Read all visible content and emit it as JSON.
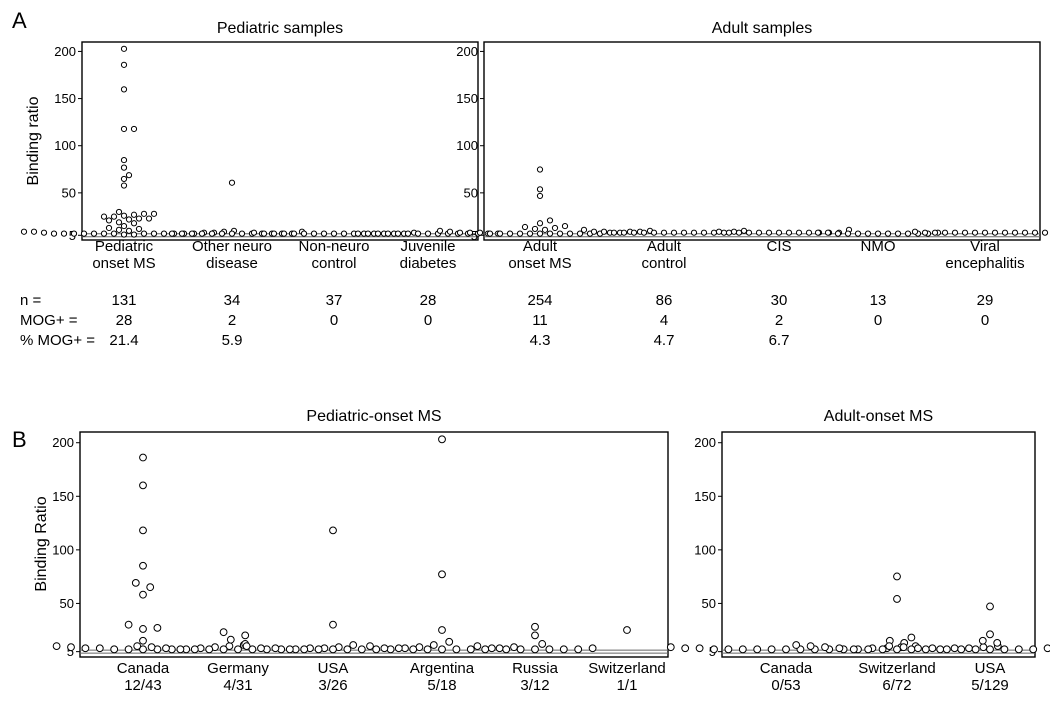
{
  "panel_letters": [
    "A",
    "B"
  ],
  "stats_labels": [
    "n =",
    "MOG+ =",
    "% MOG+ ="
  ],
  "chart_data": [
    {
      "id": "A1",
      "type": "scatter",
      "title": "Pediatric samples",
      "ylabel": "Binding ratio",
      "ylim": [
        0,
        210
      ],
      "yticks": [
        5,
        50,
        100,
        150,
        200
      ],
      "cutoff": 5,
      "categories": [
        [
          "Pediatric",
          "onset MS"
        ],
        [
          "Other neuro",
          "disease"
        ],
        [
          "Non-neuro",
          "control"
        ],
        [
          "Juvenile",
          "diabetes"
        ]
      ],
      "stats": {
        "n": [
          "131",
          "34",
          "37",
          "28"
        ],
        "mog_pos": [
          "28",
          "2",
          "0",
          "0"
        ],
        "pct": [
          "21.4",
          "5.9",
          "",
          ""
        ]
      },
      "series": [
        {
          "values": [
            200,
            183,
            157,
            115,
            115,
            82,
            74,
            66,
            62,
            55,
            27,
            25,
            25,
            24,
            23,
            22,
            22,
            20,
            20,
            19,
            18,
            16,
            15,
            12,
            10,
            9,
            8,
            7,
            7,
            6,
            6,
            6,
            5,
            5,
            5,
            4,
            4,
            4,
            4,
            4,
            4,
            4,
            4,
            4,
            4,
            4,
            4,
            4,
            3,
            3
          ]
        },
        {
          "values": [
            58,
            6,
            4,
            4,
            4,
            4,
            4,
            4,
            4,
            4,
            4,
            4,
            4,
            4,
            4
          ]
        },
        {
          "values": [
            5,
            5,
            4,
            4,
            4,
            4,
            4,
            4,
            4,
            4,
            4,
            4,
            4,
            4,
            4,
            4,
            4
          ]
        },
        {
          "values": [
            4,
            4,
            4,
            4,
            4,
            4,
            4,
            4,
            4,
            4,
            4,
            4,
            4,
            4,
            4
          ]
        }
      ]
    },
    {
      "id": "A2",
      "type": "scatter",
      "title": "Adult samples",
      "ylabel": "",
      "ylim": [
        0,
        210
      ],
      "yticks": [
        5,
        50,
        100,
        150,
        200
      ],
      "cutoff": 5,
      "categories": [
        [
          "Adult",
          "onset MS"
        ],
        [
          "Adult",
          "control"
        ],
        [
          "CIS"
        ],
        [
          "NMO"
        ],
        [
          "Viral",
          "encephalitis"
        ]
      ],
      "stats": {
        "n": [
          "254",
          "86",
          "30",
          "13",
          "29"
        ],
        "mog_pos": [
          "11",
          "4",
          "2",
          "0",
          "0"
        ],
        "pct": [
          "4.3",
          "4.7",
          "6.7",
          "",
          ""
        ]
      },
      "series": [
        {
          "values": [
            72,
            51,
            44,
            18,
            15,
            12,
            11,
            10,
            9,
            8,
            7,
            7,
            6,
            6,
            6,
            5,
            5,
            5,
            5,
            5,
            4,
            4,
            4,
            4,
            4,
            4,
            4,
            4,
            4,
            4,
            4,
            4
          ]
        },
        {
          "values": [
            8,
            7,
            6,
            6,
            6,
            5,
            5,
            5,
            5,
            5,
            5,
            5,
            5,
            5,
            5,
            5,
            5
          ]
        },
        {
          "values": [
            8,
            6,
            5,
            5,
            5,
            5,
            5,
            5,
            5,
            5,
            5,
            5,
            5,
            5
          ]
        },
        {
          "values": [
            5,
            5,
            5,
            4,
            4,
            4,
            4,
            4,
            4,
            4,
            4,
            4,
            4
          ]
        },
        {
          "values": [
            6,
            6,
            5,
            5,
            5,
            5,
            5,
            5,
            5,
            5,
            5,
            5,
            5,
            5,
            5,
            5
          ]
        }
      ]
    },
    {
      "id": "B1",
      "type": "scatter",
      "title": "Pediatric-onset MS",
      "ylabel": "Binding Ratio",
      "ylim": [
        0,
        210
      ],
      "yticks": [
        5,
        50,
        100,
        150,
        200
      ],
      "cutoff": 5,
      "categories": [
        [
          "Canada",
          "12/43"
        ],
        [
          "Germany",
          "4/31"
        ],
        [
          "USA",
          "3/26"
        ],
        [
          "Argentina",
          "5/18"
        ],
        [
          "Russia",
          "3/12"
        ],
        [
          "Switzerland",
          "1/1"
        ]
      ],
      "series": [
        {
          "values": [
            183,
            157,
            115,
            82,
            66,
            62,
            55,
            27,
            24,
            23,
            12,
            8,
            7,
            7,
            6,
            6,
            5,
            5,
            5,
            4,
            4,
            4,
            4,
            4,
            4
          ]
        },
        {
          "values": [
            20,
            17,
            13,
            9,
            8,
            7,
            6,
            6,
            5,
            5,
            5,
            4,
            4,
            4,
            4,
            4,
            4,
            4,
            4,
            4
          ]
        },
        {
          "values": [
            115,
            27,
            8,
            7,
            6,
            5,
            5,
            5,
            4,
            4,
            4,
            4,
            4,
            4,
            4,
            4
          ]
        },
        {
          "values": [
            200,
            74,
            22,
            11,
            7,
            6,
            5,
            5,
            5,
            4,
            4,
            4,
            4,
            4,
            4
          ]
        },
        {
          "values": [
            25,
            17,
            9,
            7,
            5,
            5,
            4,
            4,
            4,
            4,
            4,
            4
          ]
        },
        {
          "values": [
            22
          ]
        }
      ]
    },
    {
      "id": "B2",
      "type": "scatter",
      "title": "Adult-onset MS",
      "ylabel": "",
      "ylim": [
        0,
        210
      ],
      "yticks": [
        5,
        50,
        100,
        150,
        200
      ],
      "cutoff": 5,
      "categories": [
        [
          "Canada",
          "0/53"
        ],
        [
          "Switzerland",
          "6/72"
        ],
        [
          "USA",
          "5/129"
        ]
      ],
      "series": [
        {
          "values": [
            7,
            6,
            6,
            5,
            5,
            5,
            5,
            4,
            4,
            4,
            4,
            4,
            4,
            4,
            4,
            4,
            4,
            4
          ]
        },
        {
          "values": [
            72,
            51,
            15,
            12,
            10,
            8,
            7,
            7,
            6,
            6,
            5,
            5,
            5,
            4,
            4,
            4,
            4,
            4,
            4,
            4
          ]
        },
        {
          "values": [
            44,
            18,
            12,
            10,
            8,
            7,
            7,
            6,
            6,
            5,
            5,
            5,
            5,
            4,
            4,
            4,
            4,
            4,
            4,
            4
          ]
        }
      ]
    }
  ]
}
